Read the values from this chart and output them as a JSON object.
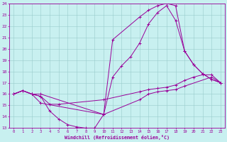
{
  "xlabel": "Windchill (Refroidissement éolien,°C)",
  "xlim": [
    -0.5,
    23.5
  ],
  "ylim": [
    13,
    24
  ],
  "yticks": [
    13,
    14,
    15,
    16,
    17,
    18,
    19,
    20,
    21,
    22,
    23,
    24
  ],
  "xticks": [
    0,
    1,
    2,
    3,
    4,
    5,
    6,
    7,
    8,
    9,
    10,
    11,
    12,
    13,
    14,
    15,
    16,
    17,
    18,
    19,
    20,
    21,
    22,
    23
  ],
  "line_color": "#990099",
  "bg_color": "#c8f0f0",
  "grid_color": "#99cccc",
  "line1_x": [
    0,
    1,
    2,
    3,
    4,
    5,
    6,
    7,
    8,
    9,
    10,
    14,
    15,
    16,
    17,
    18,
    19,
    22,
    23
  ],
  "line1_y": [
    16,
    16.3,
    16,
    15.8,
    14.5,
    13.8,
    13.3,
    13.1,
    13.0,
    13.0,
    14.2,
    15.5,
    16.0,
    16.2,
    16.3,
    16.4,
    16.7,
    17.5,
    17.0
  ],
  "line2_x": [
    0,
    1,
    2,
    3,
    10,
    11,
    12,
    13,
    14,
    15,
    16,
    17,
    18,
    19,
    20,
    21,
    22,
    23
  ],
  "line2_y": [
    16,
    16.3,
    16,
    16,
    14.2,
    17.5,
    18.5,
    19.3,
    20.5,
    22.2,
    23.2,
    23.8,
    22.5,
    19.8,
    18.6,
    17.8,
    17.3,
    17.0
  ],
  "line3_x": [
    0,
    1,
    2,
    3,
    10,
    11,
    14,
    15,
    16,
    17,
    18,
    19,
    20,
    21,
    22,
    23
  ],
  "line3_y": [
    16,
    16.3,
    16,
    15.2,
    14.2,
    20.8,
    22.8,
    23.4,
    23.8,
    24.0,
    23.8,
    19.8,
    18.6,
    17.8,
    17.3,
    17.0
  ],
  "line4_x": [
    0,
    1,
    2,
    3,
    4,
    5,
    10,
    14,
    15,
    16,
    17,
    18,
    19,
    20,
    21,
    22,
    23
  ],
  "line4_y": [
    16,
    16.3,
    16,
    15.8,
    15.1,
    15.1,
    15.5,
    16.2,
    16.4,
    16.5,
    16.6,
    16.8,
    17.2,
    17.5,
    17.7,
    17.7,
    17.0
  ]
}
